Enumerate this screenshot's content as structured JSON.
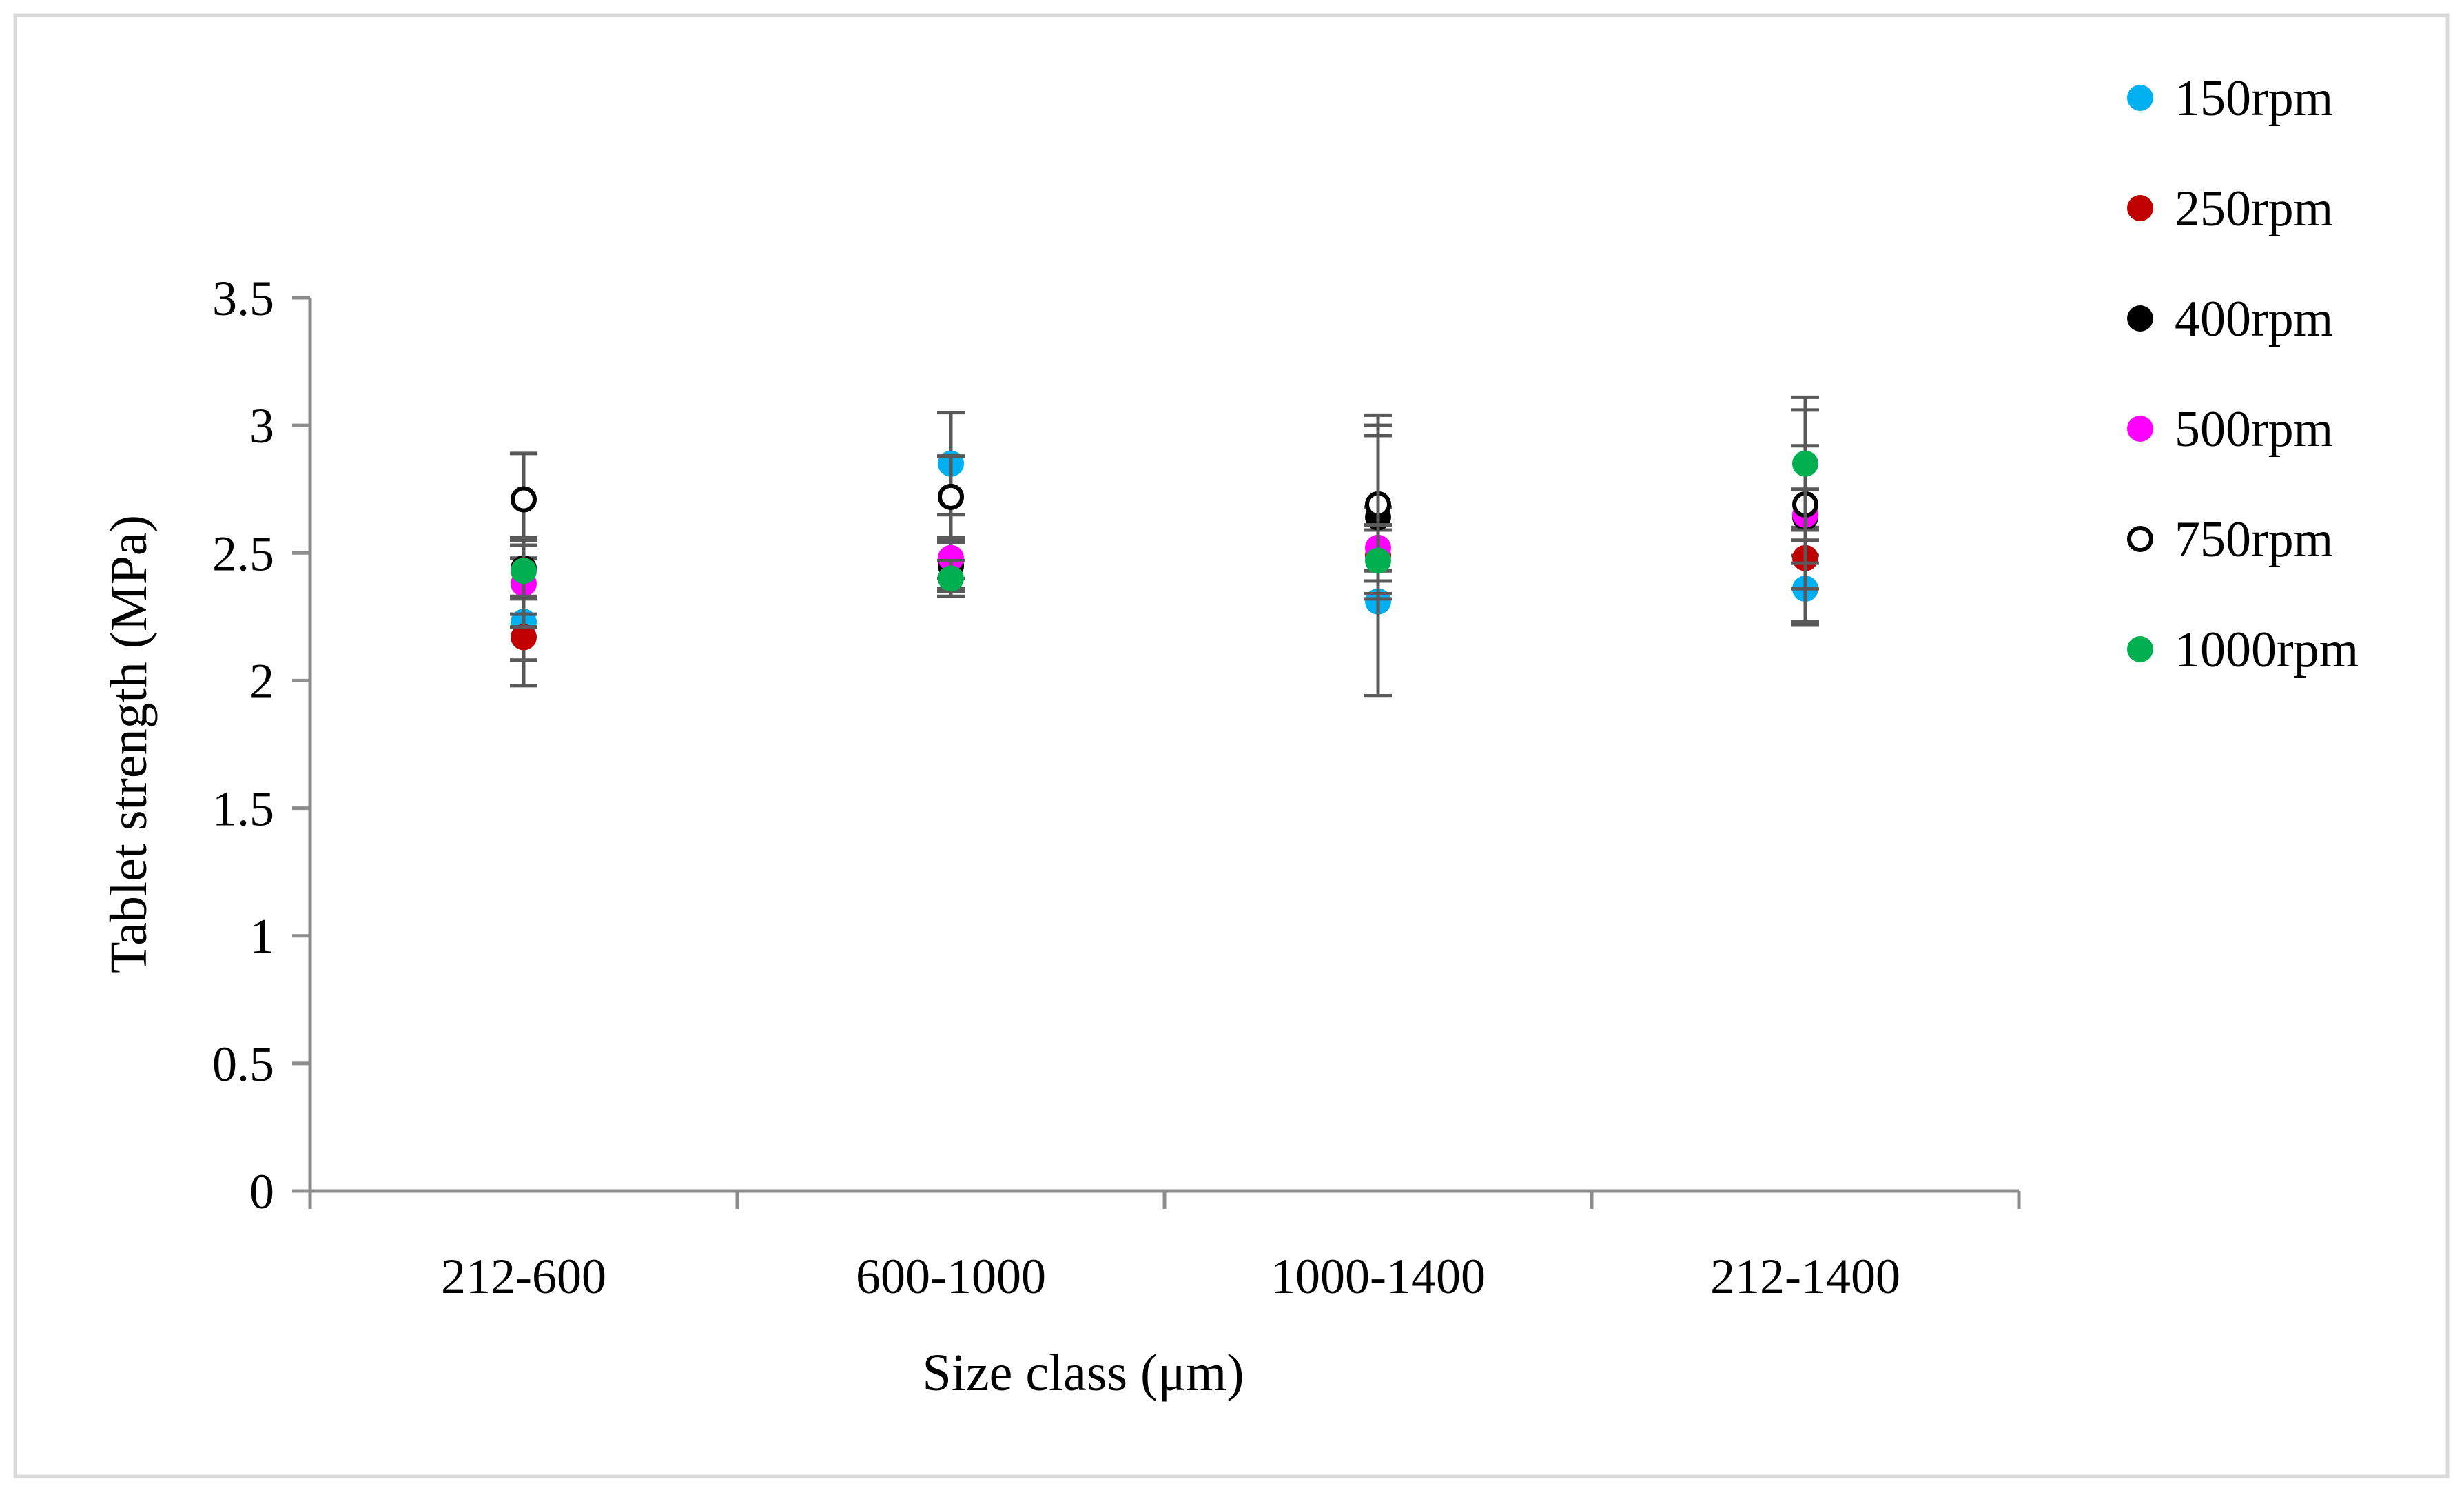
{
  "chart_data": {
    "type": "scatter",
    "title": "",
    "xlabel": "Size class (μm)",
    "ylabel": "Tablet strength (MPa)",
    "categories": [
      "212-600",
      "600-1000",
      "1000-1400",
      "212-1400"
    ],
    "ylim": [
      0,
      3.5
    ],
    "yticks": [
      "0",
      "0.5",
      "1",
      "1.5",
      "2",
      "2.5",
      "3",
      "3.5"
    ],
    "grid": false,
    "legend_position": "right",
    "series": [
      {
        "name": "150rpm",
        "color": "#00b0f0",
        "hollow": false,
        "values": [
          2.23,
          2.85,
          2.31,
          2.36
        ],
        "errors": [
          0.25,
          0.2,
          0.37,
          0.13
        ]
      },
      {
        "name": "250rpm",
        "color": "#c00000",
        "hollow": false,
        "values": [
          2.17,
          2.45,
          2.49,
          2.48
        ],
        "errors": [
          0.09,
          0.1,
          0.1,
          0.12
        ]
      },
      {
        "name": "400rpm",
        "color": "#000000",
        "hollow": false,
        "values": [
          2.44,
          2.45,
          2.64,
          2.64
        ],
        "errors": [
          0.12,
          0.09,
          0.32,
          0.42
        ]
      },
      {
        "name": "500rpm",
        "color": "#ff00ff",
        "hollow": false,
        "values": [
          2.38,
          2.48,
          2.52,
          2.65
        ],
        "errors": [
          0.17,
          0.08,
          0.09,
          0.1
        ]
      },
      {
        "name": "750rpm",
        "color": "#000000",
        "hollow": true,
        "values": [
          2.71,
          2.72,
          2.69,
          2.69
        ],
        "errors": [
          0.18,
          0.16,
          0.35,
          0.23
        ]
      },
      {
        "name": "1000rpm",
        "color": "#00b050",
        "hollow": false,
        "values": [
          2.43,
          2.4,
          2.47,
          2.85
        ],
        "errors": [
          0.1,
          0.07,
          0.53,
          0.26
        ]
      }
    ]
  }
}
